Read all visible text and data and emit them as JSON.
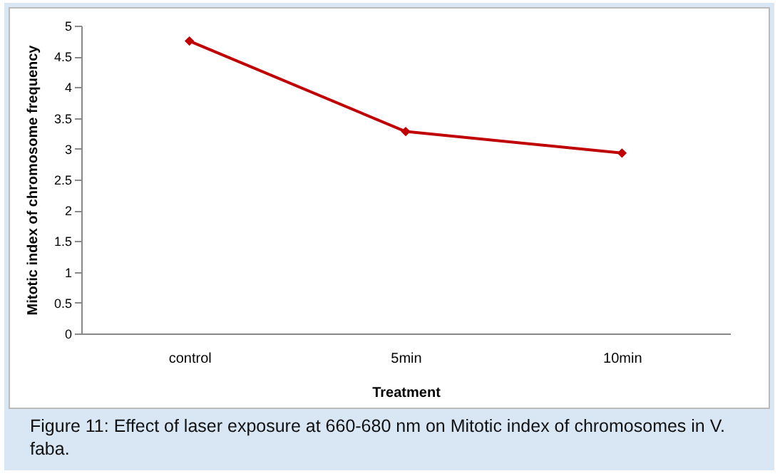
{
  "chart_data": {
    "type": "line",
    "xlabel": "Treatment",
    "ylabel": "Mitotic index of chromosome frequency",
    "categories": [
      "control",
      "5min",
      "10min"
    ],
    "series": [
      {
        "color": "#c00000",
        "values": [
          4.75,
          3.28,
          2.93
        ]
      }
    ],
    "ylim": [
      0,
      5
    ],
    "yticks": [
      0,
      0.5,
      1,
      1.5,
      2,
      2.5,
      3,
      3.5,
      4,
      4.5,
      5
    ],
    "grid": false,
    "legend": false,
    "marker": "diamond",
    "line_style": "solid",
    "annotations": [
      "Figure 11: Effect of laser exposure at 660-680 nm on Mitotic index of chromosomes in V. faba."
    ]
  }
}
